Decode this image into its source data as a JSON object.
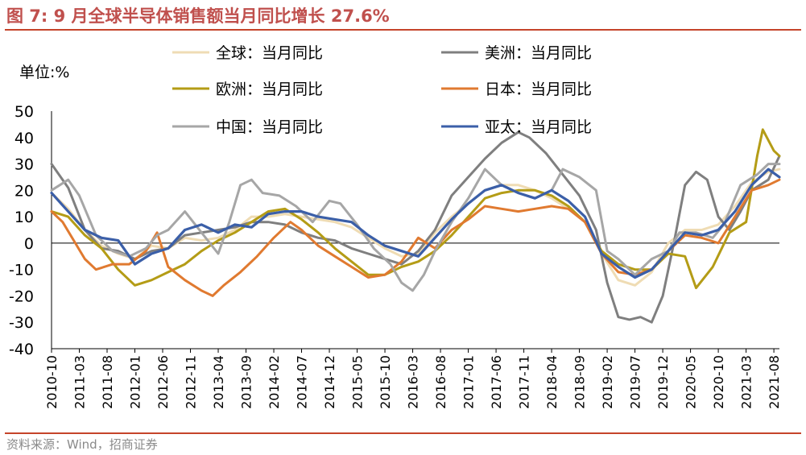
{
  "title": "图 7:  9 月全球半导体销售额当月同比增长 27.6%",
  "source": "资料来源：Wind，招商证券",
  "colors": {
    "accent": "#c0504d",
    "rule": "#c5442a"
  },
  "chart_data": {
    "type": "line",
    "ylabel": "单位:%",
    "ylim": [
      -40,
      50
    ],
    "yticks": [
      -40,
      -30,
      -20,
      -10,
      0,
      10,
      20,
      30,
      40,
      50
    ],
    "x_range": [
      0,
      131
    ],
    "x_ticks": [
      {
        "i": 0,
        "label": "2010-10"
      },
      {
        "i": 5,
        "label": "2011-03"
      },
      {
        "i": 10,
        "label": "2011-08"
      },
      {
        "i": 15,
        "label": "2012-01"
      },
      {
        "i": 20,
        "label": "2012-06"
      },
      {
        "i": 25,
        "label": "2012-11"
      },
      {
        "i": 30,
        "label": "2013-04"
      },
      {
        "i": 35,
        "label": "2013-09"
      },
      {
        "i": 40,
        "label": "2014-02"
      },
      {
        "i": 45,
        "label": "2014-07"
      },
      {
        "i": 50,
        "label": "2014-12"
      },
      {
        "i": 55,
        "label": "2015-05"
      },
      {
        "i": 60,
        "label": "2015-10"
      },
      {
        "i": 65,
        "label": "2016-03"
      },
      {
        "i": 70,
        "label": "2016-08"
      },
      {
        "i": 75,
        "label": "2017-01"
      },
      {
        "i": 80,
        "label": "2017-06"
      },
      {
        "i": 85,
        "label": "2017-11"
      },
      {
        "i": 90,
        "label": "2018-04"
      },
      {
        "i": 95,
        "label": "2018-09"
      },
      {
        "i": 100,
        "label": "2019-02"
      },
      {
        "i": 105,
        "label": "2019-07"
      },
      {
        "i": 110,
        "label": "2019-12"
      },
      {
        "i": 115,
        "label": "2020-05"
      },
      {
        "i": 120,
        "label": "2020-10"
      },
      {
        "i": 125,
        "label": "2021-03"
      },
      {
        "i": 130,
        "label": "2021-08"
      }
    ],
    "series": [
      {
        "name": "全球：当月同比",
        "color": "#efdcb4",
        "width": 3,
        "points": [
          [
            0,
            19
          ],
          [
            3,
            13
          ],
          [
            6,
            5
          ],
          [
            9,
            -1
          ],
          [
            12,
            -4
          ],
          [
            15,
            -6
          ],
          [
            18,
            -1
          ],
          [
            21,
            -2
          ],
          [
            24,
            2
          ],
          [
            27,
            1
          ],
          [
            30,
            2
          ],
          [
            33,
            5
          ],
          [
            36,
            10
          ],
          [
            39,
            10
          ],
          [
            42,
            11
          ],
          [
            45,
            10
          ],
          [
            48,
            9
          ],
          [
            51,
            8
          ],
          [
            54,
            6
          ],
          [
            57,
            2
          ],
          [
            60,
            -2
          ],
          [
            63,
            -5
          ],
          [
            66,
            -4
          ],
          [
            69,
            4
          ],
          [
            72,
            10
          ],
          [
            75,
            15
          ],
          [
            78,
            20
          ],
          [
            81,
            22
          ],
          [
            84,
            22
          ],
          [
            87,
            20
          ],
          [
            90,
            17
          ],
          [
            93,
            13
          ],
          [
            96,
            8
          ],
          [
            99,
            -4
          ],
          [
            102,
            -14
          ],
          [
            105,
            -16
          ],
          [
            108,
            -11
          ],
          [
            111,
            0
          ],
          [
            114,
            5
          ],
          [
            117,
            5
          ],
          [
            120,
            7
          ],
          [
            123,
            14
          ],
          [
            126,
            23
          ],
          [
            129,
            27
          ],
          [
            131,
            28
          ]
        ]
      },
      {
        "name": "美洲：当月同比",
        "color": "#7f7f7f",
        "width": 3,
        "points": [
          [
            0,
            30
          ],
          [
            3,
            21
          ],
          [
            6,
            5
          ],
          [
            9,
            -2
          ],
          [
            12,
            -3
          ],
          [
            15,
            -6
          ],
          [
            18,
            -3
          ],
          [
            21,
            -2
          ],
          [
            24,
            3
          ],
          [
            27,
            4
          ],
          [
            30,
            5
          ],
          [
            33,
            6
          ],
          [
            36,
            8
          ],
          [
            39,
            8
          ],
          [
            42,
            7
          ],
          [
            45,
            4
          ],
          [
            48,
            2
          ],
          [
            51,
            1
          ],
          [
            54,
            -2
          ],
          [
            57,
            -4
          ],
          [
            60,
            -6
          ],
          [
            63,
            -8
          ],
          [
            66,
            -3
          ],
          [
            69,
            5
          ],
          [
            72,
            18
          ],
          [
            75,
            25
          ],
          [
            78,
            32
          ],
          [
            81,
            38
          ],
          [
            84,
            42
          ],
          [
            86,
            40
          ],
          [
            89,
            34
          ],
          [
            92,
            26
          ],
          [
            95,
            18
          ],
          [
            98,
            5
          ],
          [
            100,
            -15
          ],
          [
            102,
            -28
          ],
          [
            104,
            -29
          ],
          [
            106,
            -28
          ],
          [
            108,
            -30
          ],
          [
            110,
            -20
          ],
          [
            112,
            0
          ],
          [
            114,
            22
          ],
          [
            116,
            27
          ],
          [
            118,
            24
          ],
          [
            120,
            10
          ],
          [
            122,
            5
          ],
          [
            124,
            12
          ],
          [
            126,
            20
          ],
          [
            129,
            24
          ],
          [
            131,
            33
          ]
        ]
      },
      {
        "name": "欧洲：当月同比",
        "color": "#b49c16",
        "width": 3,
        "points": [
          [
            0,
            12
          ],
          [
            3,
            10
          ],
          [
            6,
            3
          ],
          [
            9,
            -2
          ],
          [
            12,
            -10
          ],
          [
            15,
            -16
          ],
          [
            18,
            -14
          ],
          [
            21,
            -11
          ],
          [
            24,
            -8
          ],
          [
            27,
            -3
          ],
          [
            30,
            1
          ],
          [
            33,
            4
          ],
          [
            36,
            8
          ],
          [
            39,
            12
          ],
          [
            42,
            13
          ],
          [
            45,
            9
          ],
          [
            48,
            4
          ],
          [
            51,
            -2
          ],
          [
            54,
            -7
          ],
          [
            57,
            -12
          ],
          [
            60,
            -12
          ],
          [
            63,
            -9
          ],
          [
            66,
            -7
          ],
          [
            69,
            -3
          ],
          [
            72,
            3
          ],
          [
            75,
            10
          ],
          [
            78,
            17
          ],
          [
            81,
            19
          ],
          [
            84,
            20
          ],
          [
            87,
            20
          ],
          [
            90,
            18
          ],
          [
            93,
            14
          ],
          [
            96,
            8
          ],
          [
            99,
            -3
          ],
          [
            102,
            -8
          ],
          [
            105,
            -10
          ],
          [
            108,
            -10
          ],
          [
            111,
            -4
          ],
          [
            114,
            -5
          ],
          [
            116,
            -17
          ],
          [
            119,
            -9
          ],
          [
            122,
            4
          ],
          [
            125,
            8
          ],
          [
            127,
            33
          ],
          [
            128,
            43
          ],
          [
            130,
            35
          ],
          [
            131,
            33
          ]
        ]
      },
      {
        "name": "日本：当月同比",
        "color": "#e07a30",
        "width": 3,
        "points": [
          [
            0,
            12
          ],
          [
            2,
            8
          ],
          [
            4,
            1
          ],
          [
            6,
            -6
          ],
          [
            8,
            -10
          ],
          [
            11,
            -8
          ],
          [
            14,
            -8
          ],
          [
            17,
            -3
          ],
          [
            19,
            4
          ],
          [
            21,
            -9
          ],
          [
            24,
            -14
          ],
          [
            27,
            -18
          ],
          [
            29,
            -20
          ],
          [
            31,
            -16
          ],
          [
            34,
            -11
          ],
          [
            37,
            -5
          ],
          [
            40,
            2
          ],
          [
            43,
            8
          ],
          [
            45,
            5
          ],
          [
            48,
            -1
          ],
          [
            51,
            -5
          ],
          [
            54,
            -9
          ],
          [
            57,
            -13
          ],
          [
            60,
            -12
          ],
          [
            63,
            -7
          ],
          [
            66,
            2
          ],
          [
            69,
            -2
          ],
          [
            72,
            5
          ],
          [
            75,
            9
          ],
          [
            78,
            14
          ],
          [
            81,
            13
          ],
          [
            84,
            12
          ],
          [
            87,
            13
          ],
          [
            90,
            14
          ],
          [
            93,
            13
          ],
          [
            96,
            8
          ],
          [
            99,
            -4
          ],
          [
            102,
            -11
          ],
          [
            105,
            -12
          ],
          [
            108,
            -10
          ],
          [
            111,
            -3
          ],
          [
            114,
            3
          ],
          [
            117,
            2
          ],
          [
            120,
            0
          ],
          [
            123,
            10
          ],
          [
            126,
            20
          ],
          [
            129,
            22
          ],
          [
            131,
            24
          ]
        ]
      },
      {
        "name": "中国：当月同比",
        "color": "#a6a6a6",
        "width": 3,
        "points": [
          [
            0,
            20
          ],
          [
            3,
            24
          ],
          [
            5,
            18
          ],
          [
            8,
            3
          ],
          [
            11,
            -3
          ],
          [
            14,
            -5
          ],
          [
            17,
            -2
          ],
          [
            19,
            3
          ],
          [
            21,
            5
          ],
          [
            24,
            12
          ],
          [
            27,
            4
          ],
          [
            30,
            -4
          ],
          [
            32,
            8
          ],
          [
            34,
            22
          ],
          [
            36,
            24
          ],
          [
            38,
            19
          ],
          [
            41,
            18
          ],
          [
            44,
            14
          ],
          [
            47,
            8
          ],
          [
            50,
            16
          ],
          [
            52,
            15
          ],
          [
            55,
            7
          ],
          [
            58,
            -2
          ],
          [
            61,
            -8
          ],
          [
            63,
            -15
          ],
          [
            65,
            -18
          ],
          [
            67,
            -12
          ],
          [
            69,
            -3
          ],
          [
            72,
            8
          ],
          [
            75,
            17
          ],
          [
            78,
            28
          ],
          [
            81,
            22
          ],
          [
            84,
            19
          ],
          [
            87,
            17
          ],
          [
            90,
            20
          ],
          [
            92,
            28
          ],
          [
            95,
            25
          ],
          [
            98,
            20
          ],
          [
            100,
            -3
          ],
          [
            102,
            -6
          ],
          [
            105,
            -12
          ],
          [
            108,
            -6
          ],
          [
            111,
            -3
          ],
          [
            113,
            4
          ],
          [
            116,
            4
          ],
          [
            119,
            2
          ],
          [
            121,
            7
          ],
          [
            124,
            22
          ],
          [
            127,
            26
          ],
          [
            129,
            30
          ],
          [
            131,
            30
          ]
        ]
      },
      {
        "name": "亚太：当月同比",
        "color": "#3b5fa8",
        "width": 3.2,
        "points": [
          [
            0,
            19
          ],
          [
            3,
            12
          ],
          [
            6,
            5
          ],
          [
            9,
            2
          ],
          [
            12,
            1
          ],
          [
            15,
            -8
          ],
          [
            18,
            -4
          ],
          [
            21,
            -2
          ],
          [
            24,
            5
          ],
          [
            27,
            7
          ],
          [
            30,
            4
          ],
          [
            33,
            7
          ],
          [
            36,
            6
          ],
          [
            39,
            11
          ],
          [
            42,
            12
          ],
          [
            45,
            12
          ],
          [
            48,
            10
          ],
          [
            51,
            9
          ],
          [
            54,
            8
          ],
          [
            57,
            3
          ],
          [
            60,
            -1
          ],
          [
            63,
            -3
          ],
          [
            66,
            -5
          ],
          [
            69,
            2
          ],
          [
            72,
            9
          ],
          [
            75,
            15
          ],
          [
            78,
            20
          ],
          [
            81,
            22
          ],
          [
            84,
            19
          ],
          [
            87,
            17
          ],
          [
            90,
            20
          ],
          [
            93,
            16
          ],
          [
            96,
            10
          ],
          [
            99,
            -4
          ],
          [
            102,
            -9
          ],
          [
            105,
            -13
          ],
          [
            108,
            -10
          ],
          [
            111,
            -3
          ],
          [
            114,
            4
          ],
          [
            117,
            3
          ],
          [
            120,
            5
          ],
          [
            123,
            12
          ],
          [
            126,
            22
          ],
          [
            129,
            28
          ],
          [
            131,
            25
          ]
        ]
      }
    ],
    "legend": {
      "placement": "top",
      "columns": 2
    }
  }
}
